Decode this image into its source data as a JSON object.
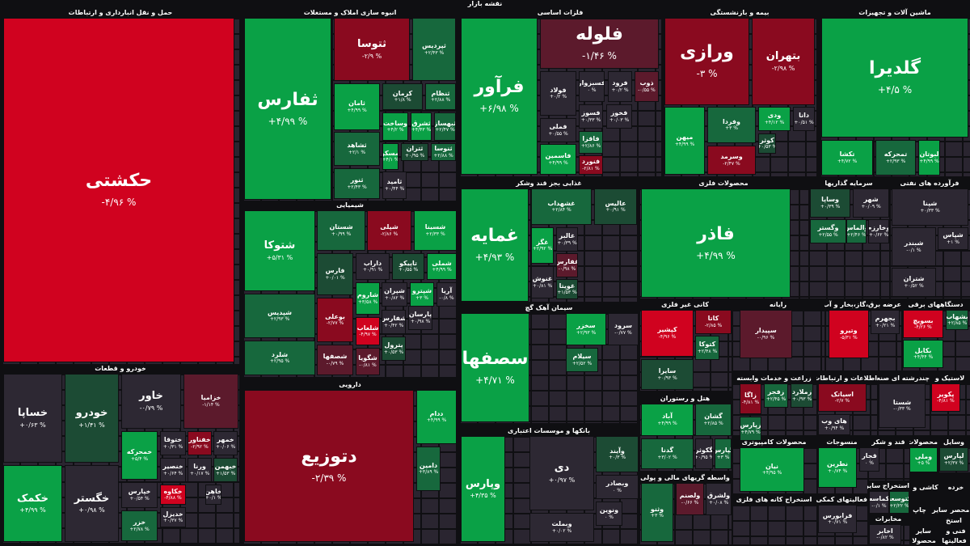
{
  "title": "نقشه بازار",
  "colors": {
    "bright_green": "#0aa146",
    "mid_green": "#17683d",
    "dark_green": "#1c4b34",
    "neutral": "#2d2833",
    "muted_red": "#5c1a2c",
    "dark_red": "#8a0a1f",
    "bright_red": "#d0021f",
    "background": "#0f0f12"
  },
  "sectors": [
    "حمل و نقل انبارداری و ارتباطات",
    "انبوه سازی املاک و مستغلات",
    "فلزات اساسی",
    "بیمه و بازنشستگی",
    "ماشین آلات و تجهیزات",
    "شیمیایی",
    "غذایی بجز قند وشکر",
    "محصولات فلزی",
    "سرمایه گذاریها",
    "فرآورده های نفتی",
    "خودرو و قطعات",
    "دارویی",
    "سیمان آهک گچ",
    "کانی غیر فلزی",
    "رایانه",
    "عرضه برق،گاز،بخار و آب گرم",
    "دستگاههای برقی",
    "هتل و رستوران",
    "زراعت و خدمات وابسته",
    "اطلاعات و ارتباطات",
    "چندرشته ای صنعتی",
    "لاستیک و",
    "بانکها و موسسات اعتباری",
    "واسطه گریهای مالی و پولی",
    "محصولات کامپیوتری",
    "منسوجات",
    "قند و شکر",
    "محصولات",
    "وسایل",
    "استخراج کانه های فلزی",
    "فعالیتهای کمکی",
    "استخراج سایر",
    "مخابرات",
    "کاشی و",
    "خرده",
    "چاپ",
    "سایر",
    "محصر",
    "فنی و",
    "سایر",
    "محصولا",
    "فعالیتها",
    "استخ"
  ],
  "tiles": [
    {
      "name": "حکشتی",
      "change": "-۴/۹۶ %",
      "tone": "bright_red"
    },
    {
      "name": "ثفارس",
      "change": "+۴/۹۹ %",
      "tone": "bright_green"
    },
    {
      "name": "ثتوسا",
      "change": "-۲/۹ %",
      "tone": "dark_red"
    },
    {
      "name": "ثپردیس",
      "change": "+۲/۴۳ %",
      "tone": "mid_green"
    },
    {
      "name": "ثامان",
      "change": "+۴/۹۹ %",
      "tone": "bright_green"
    },
    {
      "name": "کرمان",
      "change": "+۱/۸ %",
      "tone": "dark_green"
    },
    {
      "name": "ثنظام",
      "change": "+۲/۸۸ %",
      "tone": "mid_green"
    },
    {
      "name": "وساخت",
      "change": "+۴/۲ %",
      "tone": "bright_green"
    },
    {
      "name": "ثشرق",
      "change": "+۴/۴۳ %",
      "tone": "bright_green"
    },
    {
      "name": "ثبهساز",
      "change": "+۲/۴۷ %",
      "tone": "mid_green"
    },
    {
      "name": "ثشاهد",
      "change": "+۲/۱ %",
      "tone": "mid_green"
    },
    {
      "name": "ثمسکن",
      "change": "+۴/۱ %",
      "tone": "bright_green"
    },
    {
      "name": "ثتران",
      "change": "+۰/۹۵ %",
      "tone": "dark_green"
    },
    {
      "name": "ثنوسا",
      "change": "+۲/۸۸ %",
      "tone": "mid_green"
    },
    {
      "name": "ثنور",
      "change": "+۲/۴۳ %",
      "tone": "mid_green"
    },
    {
      "name": "ثامید",
      "change": "+۰/۴۴ %",
      "tone": "neutral"
    },
    {
      "name": "فرآور",
      "change": "+۶/۹۸ %",
      "tone": "bright_green"
    },
    {
      "name": "فلوله",
      "change": "-۱/۴۶ %",
      "tone": "muted_red"
    },
    {
      "name": "فولاد",
      "change": "+۰/۲ %",
      "tone": "neutral"
    },
    {
      "name": "فسبزوار",
      "change": "۰ %",
      "tone": "neutral"
    },
    {
      "name": "فرود",
      "change": "+۰/۲ %",
      "tone": "neutral"
    },
    {
      "name": "ذوب",
      "change": "-۰/۵۵ %",
      "tone": "muted_red"
    },
    {
      "name": "فسوز",
      "change": "+۰/۳۳ %",
      "tone": "neutral"
    },
    {
      "name": "فخوز",
      "change": "+۰/۰۳ %",
      "tone": "neutral"
    },
    {
      "name": "فملی",
      "change": "+۰/۵۵ %",
      "tone": "neutral"
    },
    {
      "name": "فاقزا",
      "change": "+۲/۸۶ %",
      "tone": "mid_green"
    },
    {
      "name": "فاسمین",
      "change": "+۴/۹۹ %",
      "tone": "bright_green"
    },
    {
      "name": "فنورد",
      "change": "-۲/۸۱ %",
      "tone": "dark_red"
    },
    {
      "name": "ورازی",
      "change": "-۳ %",
      "tone": "dark_red"
    },
    {
      "name": "بتهران",
      "change": "-۲/۹۸ %",
      "tone": "dark_red"
    },
    {
      "name": "میهن",
      "change": "+۴/۹۹ %",
      "tone": "bright_green"
    },
    {
      "name": "وفردا",
      "change": "+۳ %",
      "tone": "mid_green"
    },
    {
      "name": "وسرمد",
      "change": "-۲/۴۷ %",
      "tone": "dark_red"
    },
    {
      "name": "ودی",
      "change": "+۴/۱۲ %",
      "tone": "bright_green"
    },
    {
      "name": "دانا",
      "change": "+۰/۵۱ %",
      "tone": "neutral"
    },
    {
      "name": "کوثر",
      "change": "+۰/۵۳ %",
      "tone": "dark_green"
    },
    {
      "name": "گلدیرا",
      "change": "+۴/۵ %",
      "tone": "bright_green"
    },
    {
      "name": "تکشا",
      "change": "+۴/۷۲ %",
      "tone": "bright_green"
    },
    {
      "name": "تمحرکه",
      "change": "+۲/۹۳ %",
      "tone": "mid_green"
    },
    {
      "name": "لبوتان",
      "change": "+۴/۹۹ %",
      "tone": "bright_green"
    },
    {
      "name": "شتوکا",
      "change": "+۵/۳۱ %",
      "tone": "bright_green"
    },
    {
      "name": "شستان",
      "change": "+۰/۹۹ %",
      "tone": "mid_green"
    },
    {
      "name": "شپلی",
      "change": "-۲/۸۶ %",
      "tone": "dark_red"
    },
    {
      "name": "شسینا",
      "change": "+۲/۳۳ %",
      "tone": "bright_green"
    },
    {
      "name": "فارس",
      "change": "+۰/۰۱ %",
      "tone": "dark_green"
    },
    {
      "name": "داراب",
      "change": "+۰/۹۱ %",
      "tone": "neutral"
    },
    {
      "name": "تاپیکو",
      "change": "+۰/۵۵ %",
      "tone": "dark_green"
    },
    {
      "name": "شملی",
      "change": "+۴/۹۹ %",
      "tone": "bright_green"
    },
    {
      "name": "شاروم",
      "change": "+۳/۵۸ %",
      "tone": "bright_green"
    },
    {
      "name": "شپران",
      "change": "+۰/۸۲ %",
      "tone": "neutral"
    },
    {
      "name": "شپترو",
      "change": "+۳ %",
      "tone": "bright_green"
    },
    {
      "name": "آریا",
      "change": "-۰/۸ %",
      "tone": "neutral"
    },
    {
      "name": "شپدیس",
      "change": "+۲/۹۳ %",
      "tone": "mid_green"
    },
    {
      "name": "بوعلی",
      "change": "-۲/۷۷ %",
      "tone": "dark_red"
    },
    {
      "name": "شلعاب",
      "change": "-۴/۹۷ %",
      "tone": "bright_red"
    },
    {
      "name": "شفارس",
      "change": "+۰/۴۲ %",
      "tone": "neutral"
    },
    {
      "name": "پارسان",
      "change": "+۰/۹۸ %",
      "tone": "neutral"
    },
    {
      "name": "پترول",
      "change": "+۰/۵۳ %",
      "tone": "dark_green"
    },
    {
      "name": "شلرد",
      "change": "+۲/۹۵ %",
      "tone": "mid_green"
    },
    {
      "name": "شصفها",
      "change": "-۰/۷۹ %",
      "tone": "muted_red"
    },
    {
      "name": "شگویا",
      "change": "-۰/۸۱ %",
      "tone": "muted_red"
    },
    {
      "name": "غمایه",
      "change": "+۴/۹۳ %",
      "tone": "bright_green"
    },
    {
      "name": "غشهداب",
      "change": "+۲/۸۴ %",
      "tone": "mid_green"
    },
    {
      "name": "عالیس",
      "change": "+۰/۹۱ %",
      "tone": "dark_green"
    },
    {
      "name": "غگز",
      "change": "+۲/۹۲ %",
      "tone": "bright_green"
    },
    {
      "name": "غالبر",
      "change": "+۰/۳۹ %",
      "tone": "neutral"
    },
    {
      "name": "غفارس",
      "change": "-۰/۹۸ %",
      "tone": "muted_red"
    },
    {
      "name": "غنوش",
      "change": "+۰/۸۱ %",
      "tone": "neutral"
    },
    {
      "name": "غویتا",
      "change": "+۱/۵۳ %",
      "tone": "dark_green"
    },
    {
      "name": "فاذر",
      "change": "+۴/۹۹ %",
      "tone": "bright_green"
    },
    {
      "name": "وساپا",
      "change": "+۰/۳۹ %",
      "tone": "dark_green"
    },
    {
      "name": "شهر",
      "change": "+۰/۰۹ %",
      "tone": "neutral"
    },
    {
      "name": "وگستر",
      "change": "+۲/۵۵ %",
      "tone": "mid_green"
    },
    {
      "name": "والماس",
      "change": "+۲/۴۶ %",
      "tone": "mid_green"
    },
    {
      "name": "وخارزم",
      "change": "+۰/۶۲ %",
      "tone": "neutral"
    },
    {
      "name": "شپنا",
      "change": "+۰/۳۳ %",
      "tone": "neutral"
    },
    {
      "name": "شبندر",
      "change": "-۰/۱ %",
      "tone": "neutral"
    },
    {
      "name": "شپاس",
      "change": "+۱ %",
      "tone": "neutral"
    },
    {
      "name": "شتران",
      "change": "+۰/۵۲ %",
      "tone": "neutral"
    },
    {
      "name": "سصفها",
      "change": "+۴/۷۱ %",
      "tone": "bright_green"
    },
    {
      "name": "سخزر",
      "change": "+۲/۹۳ %",
      "tone": "bright_green"
    },
    {
      "name": "سرود",
      "change": "-۰/۷۷ %",
      "tone": "neutral"
    },
    {
      "name": "سیلام",
      "change": "+۲/۵۲ %",
      "tone": "mid_green"
    },
    {
      "name": "کپشیر",
      "change": "-۴/۹۶ %",
      "tone": "bright_red"
    },
    {
      "name": "کاتا",
      "change": "-۲/۸۵ %",
      "tone": "dark_red"
    },
    {
      "name": "کتوکا",
      "change": "+۲/۴۸ %",
      "tone": "mid_green"
    },
    {
      "name": "سایرا",
      "change": "+۰/۹۳ %",
      "tone": "dark_green"
    },
    {
      "name": "سپیدار",
      "change": "-۰/۹۶ %",
      "tone": "muted_red"
    },
    {
      "name": "وتیرو",
      "change": "-۵/۳۱ %",
      "tone": "bright_red"
    },
    {
      "name": "بجهرم",
      "change": "+۰/۲۱ %",
      "tone": "neutral"
    },
    {
      "name": "بسویچ",
      "change": "-۴/۲۶ %",
      "tone": "bright_red"
    },
    {
      "name": "بشهاب",
      "change": "+۲/۸۵ %",
      "tone": "mid_green"
    },
    {
      "name": "بکابل",
      "change": "+۴/۴۴ %",
      "tone": "bright_green"
    },
    {
      "name": "آباد",
      "change": "+۴/۹۹ %",
      "tone": "bright_green"
    },
    {
      "name": "گشان",
      "change": "+۲/۸۵ %",
      "tone": "mid_green"
    },
    {
      "name": "گدنا",
      "change": "+۳/۰۲ %",
      "tone": "mid_green"
    },
    {
      "name": "گکوثر",
      "change": "+۰/۹۵ %",
      "tone": "neutral"
    },
    {
      "name": "گپارس",
      "change": "+۳ %",
      "tone": "mid_green"
    },
    {
      "name": "زاگا",
      "change": "-۴/۸۱ %",
      "tone": "dark_red"
    },
    {
      "name": "زفجر",
      "change": "+۲/۴۵ %",
      "tone": "mid_green"
    },
    {
      "name": "زملارد",
      "change": "+۰/۹۳ %",
      "tone": "dark_green"
    },
    {
      "name": "زپارس",
      "change": "+۴/۷۹ %",
      "tone": "mid_green"
    },
    {
      "name": "اسیاتک",
      "change": "-۲/۷ %",
      "tone": "dark_red"
    },
    {
      "name": "های وب",
      "change": "+۰/۹۴ %",
      "tone": "neutral"
    },
    {
      "name": "شستا",
      "change": "-۰/۳۳ %",
      "tone": "neutral"
    },
    {
      "name": "پکویر",
      "change": "-۴/۸۱ %",
      "tone": "bright_red"
    },
    {
      "name": "وپارس",
      "change": "+۴/۳۵ %",
      "tone": "bright_green"
    },
    {
      "name": "دی",
      "change": "+۰/۹۷ %",
      "tone": "neutral"
    },
    {
      "name": "وآیند",
      "change": "+۰/۳ %",
      "tone": "dark_green"
    },
    {
      "name": "وبصادر",
      "change": "۰ %",
      "tone": "neutral"
    },
    {
      "name": "ونوین",
      "change": "۰ %",
      "tone": "neutral"
    },
    {
      "name": "وبملت",
      "change": "+۰/۰۲ %",
      "tone": "neutral"
    },
    {
      "name": "وثنو",
      "change": "+۳ %",
      "tone": "mid_green"
    },
    {
      "name": "ولصنم",
      "change": "-۰/۶۶ %",
      "tone": "muted_red"
    },
    {
      "name": "ولشرق",
      "change": "+۰/۰۸ %",
      "tone": "neutral"
    },
    {
      "name": "نیان",
      "change": "+۴/۹۵ %",
      "tone": "bright_green"
    },
    {
      "name": "نطرین",
      "change": "+۰/۷۴ %",
      "tone": "bright_green"
    },
    {
      "name": "قجار",
      "change": "۰ %",
      "tone": "neutral"
    },
    {
      "name": "وملی",
      "change": "+۵ %",
      "tone": "bright_green"
    },
    {
      "name": "لپارس",
      "change": "+۲/۳۷ %",
      "tone": "dark_green"
    },
    {
      "name": "کماسه",
      "change": "-۰/۱ %",
      "tone": "neutral"
    },
    {
      "name": "کتوسعه",
      "change": "+۲/۲۲ %",
      "tone": "mid_green"
    },
    {
      "name": "فرابورس",
      "change": "+۰/۷۱ %",
      "tone": "neutral"
    },
    {
      "name": "اخابر",
      "change": "-۰/۸۲ %",
      "tone": "neutral"
    },
    {
      "name": "خساپا",
      "change": "+۰/۶۳ %",
      "tone": "neutral"
    },
    {
      "name": "خودرو",
      "change": "+۱/۴۱ %",
      "tone": "dark_green"
    },
    {
      "name": "خاور",
      "change": "-۰/۷۹ %",
      "tone": "neutral"
    },
    {
      "name": "خزامیا",
      "change": "-۱/۱۴ %",
      "tone": "muted_red"
    },
    {
      "name": "خکمک",
      "change": "+۴/۹۹ %",
      "tone": "bright_green"
    },
    {
      "name": "خگستر",
      "change": "+۰/۹۸ %",
      "tone": "neutral"
    },
    {
      "name": "خمحرکه",
      "change": "+۵/۴ %",
      "tone": "bright_green"
    },
    {
      "name": "ختوقا",
      "change": "+۰/۳۱ %",
      "tone": "neutral"
    },
    {
      "name": "خفناور",
      "change": "-۲/۹۲ %",
      "tone": "dark_red"
    },
    {
      "name": "خمهر",
      "change": "+۰/۰۶ %",
      "tone": "neutral"
    },
    {
      "name": "خنصیر",
      "change": "+۰/۶۴ %",
      "tone": "neutral"
    },
    {
      "name": "ورنا",
      "change": "+۰/۱۷ %",
      "tone": "neutral"
    },
    {
      "name": "خبهمن",
      "change": "+۱/۵۳ %",
      "tone": "dark_green"
    },
    {
      "name": "خکاوه",
      "change": "-۴/۸۸ %",
      "tone": "bright_red"
    },
    {
      "name": "خاهن",
      "change": "+۰/۱ %",
      "tone": "neutral"
    },
    {
      "name": "خپارس",
      "change": "+۰/۵۴ %",
      "tone": "neutral"
    },
    {
      "name": "خدیزل",
      "change": "+۰/۳۷ %",
      "tone": "neutral"
    },
    {
      "name": "خزر",
      "change": "+۲/۷۸ %",
      "tone": "mid_green"
    },
    {
      "name": "دتوزیع",
      "change": "-۲/۳۹ %",
      "tone": "dark_red"
    },
    {
      "name": "ددام",
      "change": "+۴/۹۹ %",
      "tone": "bright_green"
    },
    {
      "name": "دامین",
      "change": "+۳/۸۹ %",
      "tone": "mid_green"
    }
  ]
}
